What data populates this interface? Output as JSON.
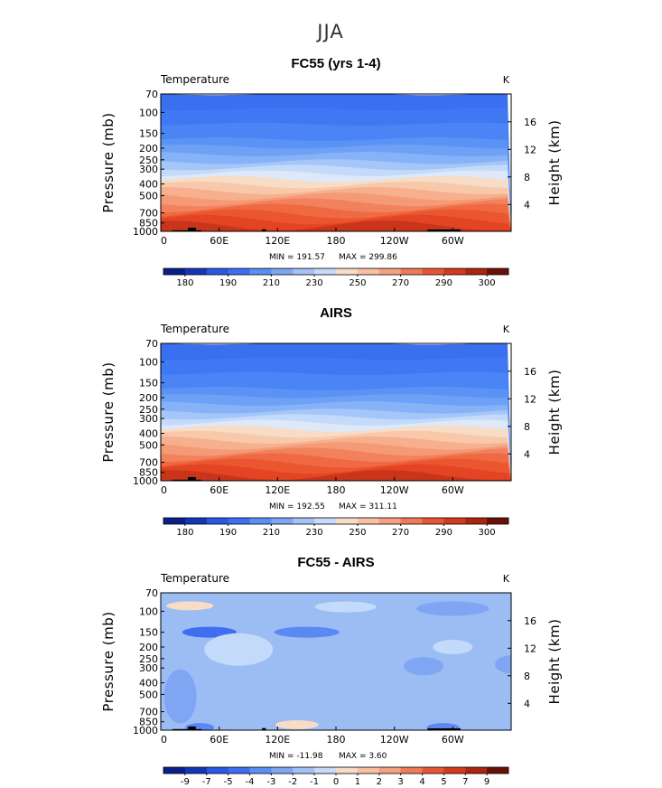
{
  "figure": {
    "title": "JJA"
  },
  "chart_data": [
    {
      "type": "heatmap",
      "title": "FC55 (yrs 1-4)",
      "variable": "Temperature",
      "units": "K",
      "xticks": [
        "0",
        "60E",
        "120E",
        "180",
        "120W",
        "60W"
      ],
      "yticks_left": [
        "70",
        "100",
        "150",
        "200",
        "250",
        "300",
        "400",
        "500",
        "700",
        "850",
        "1000"
      ],
      "yticks_right": [
        "16",
        "12",
        "8",
        "4"
      ],
      "ylabel_left": "Pressure (mb)",
      "ylabel_right": "Height (km)",
      "min_label": "MIN = 191.57",
      "max_label": "MAX = 299.86",
      "colorbar_labels": [
        "180",
        "190",
        "210",
        "230",
        "250",
        "270",
        "290",
        "300"
      ],
      "levels_top_to_bottom": [
        {
          "value": 200,
          "color": "#3a6ff0"
        },
        {
          "value": 203,
          "color": "#3f78f3"
        },
        {
          "value": 207,
          "color": "#4a84f5"
        },
        {
          "value": 212,
          "color": "#5b92f5"
        },
        {
          "value": 218,
          "color": "#6ea1f6"
        },
        {
          "value": 224,
          "color": "#86b2f8"
        },
        {
          "value": 232,
          "color": "#a4c6f9"
        },
        {
          "value": 240,
          "color": "#c4dafa"
        },
        {
          "value": 246,
          "color": "#dde9f8"
        },
        {
          "value": 252,
          "color": "#f7dcc6"
        },
        {
          "value": 258,
          "color": "#f8c8ab"
        },
        {
          "value": 264,
          "color": "#f7b08e"
        },
        {
          "value": 270,
          "color": "#f59a76"
        },
        {
          "value": 276,
          "color": "#f2825d"
        },
        {
          "value": 282,
          "color": "#ef6a43"
        },
        {
          "value": 288,
          "color": "#eb5530"
        },
        {
          "value": 293,
          "color": "#e34423"
        },
        {
          "value": 297,
          "color": "#c9351b"
        }
      ]
    },
    {
      "type": "heatmap",
      "title": "AIRS",
      "variable": "Temperature",
      "units": "K",
      "xticks": [
        "0",
        "60E",
        "120E",
        "180",
        "120W",
        "60W"
      ],
      "yticks_left": [
        "70",
        "100",
        "150",
        "200",
        "250",
        "300",
        "400",
        "500",
        "700",
        "850",
        "1000"
      ],
      "yticks_right": [
        "16",
        "12",
        "8",
        "4"
      ],
      "ylabel_left": "Pressure (mb)",
      "ylabel_right": "Height (km)",
      "min_label": "MIN = 192.55",
      "max_label": "MAX = 311.11",
      "colorbar_labels": [
        "180",
        "190",
        "210",
        "230",
        "250",
        "270",
        "290",
        "300"
      ],
      "levels_top_to_bottom": [
        {
          "value": 200,
          "color": "#3a6ff0"
        },
        {
          "value": 203,
          "color": "#3f78f3"
        },
        {
          "value": 207,
          "color": "#4a84f5"
        },
        {
          "value": 212,
          "color": "#5b92f5"
        },
        {
          "value": 218,
          "color": "#6ea1f6"
        },
        {
          "value": 224,
          "color": "#86b2f8"
        },
        {
          "value": 232,
          "color": "#a4c6f9"
        },
        {
          "value": 240,
          "color": "#c4dafa"
        },
        {
          "value": 246,
          "color": "#dde9f8"
        },
        {
          "value": 252,
          "color": "#f7dcc6"
        },
        {
          "value": 258,
          "color": "#f8c8ab"
        },
        {
          "value": 264,
          "color": "#f7b08e"
        },
        {
          "value": 270,
          "color": "#f59a76"
        },
        {
          "value": 276,
          "color": "#f2825d"
        },
        {
          "value": 282,
          "color": "#ef6a43"
        },
        {
          "value": 288,
          "color": "#eb5530"
        },
        {
          "value": 293,
          "color": "#e34423"
        },
        {
          "value": 297,
          "color": "#c9351b"
        }
      ]
    },
    {
      "type": "heatmap",
      "title": "FC55 - AIRS",
      "variable": "Temperature",
      "units": "K",
      "xticks": [
        "0",
        "60E",
        "120E",
        "180",
        "120W",
        "60W"
      ],
      "yticks_left": [
        "70",
        "100",
        "150",
        "200",
        "250",
        "300",
        "400",
        "500",
        "700",
        "850",
        "1000"
      ],
      "yticks_right": [
        "16",
        "12",
        "8",
        "4"
      ],
      "ylabel_left": "Pressure (mb)",
      "ylabel_right": "Height (km)",
      "min_label": "MIN = -11.98",
      "max_label": "MAX =    3.60",
      "colorbar_labels": [
        "-9",
        "-7",
        "-5",
        "-4",
        "-3",
        "-2",
        "-1",
        "0",
        "1",
        "2",
        "3",
        "4",
        "5",
        "7",
        "9"
      ],
      "background_color": "#9cbcf4",
      "background_value": -1.5,
      "anomalies": [
        {
          "lon": 30,
          "p": 90,
          "value": 0.5,
          "color": "#f7dcc6"
        },
        {
          "lon": 190,
          "p": 92,
          "value": -0.5,
          "color": "#c4dafa"
        },
        {
          "lon": 300,
          "p": 95,
          "value": -2,
          "color": "#7fa6f3"
        },
        {
          "lon": 50,
          "p": 150,
          "value": -4,
          "color": "#3f6ff0"
        },
        {
          "lon": 150,
          "p": 150,
          "value": -3,
          "color": "#5b88f2"
        },
        {
          "lon": 80,
          "p": 210,
          "value": -0.5,
          "color": "#c4dafa"
        },
        {
          "lon": 300,
          "p": 200,
          "value": -0.5,
          "color": "#c4dafa"
        },
        {
          "lon": 270,
          "p": 290,
          "value": -2.5,
          "color": "#7fa6f3"
        },
        {
          "lon": 360,
          "p": 280,
          "value": -2.5,
          "color": "#7fa6f3"
        },
        {
          "lon": 20,
          "p": 520,
          "value": -2.5,
          "color": "#7fa6f3"
        },
        {
          "lon": 140,
          "p": 900,
          "value": 0.5,
          "color": "#f7dcc6"
        },
        {
          "lon": 40,
          "p": 950,
          "value": -3,
          "color": "#5b88f2"
        },
        {
          "lon": 290,
          "p": 950,
          "value": -3,
          "color": "#5b88f2"
        }
      ]
    }
  ],
  "colorbar_temperature": [
    "#0b1f8a",
    "#1436b8",
    "#2a57e6",
    "#3f6ff0",
    "#5c8ff4",
    "#7fa6f3",
    "#a4c2f6",
    "#c7dbf8",
    "#f7dcc6",
    "#f8c1a4",
    "#f5a07f",
    "#ef7b5b",
    "#e85533",
    "#d43a1c",
    "#a82612",
    "#6b1008"
  ],
  "colorbar_diff": [
    "#0b1f8a",
    "#1436b8",
    "#2a57e6",
    "#3f6ff0",
    "#5c8ff4",
    "#7fa6f3",
    "#a4c2f6",
    "#c7dbf8",
    "#f7dcc6",
    "#f8c1a4",
    "#f5a07f",
    "#ef7b5b",
    "#e85533",
    "#d43a1c",
    "#a82612",
    "#6b1008"
  ],
  "topography_color": "#000000"
}
